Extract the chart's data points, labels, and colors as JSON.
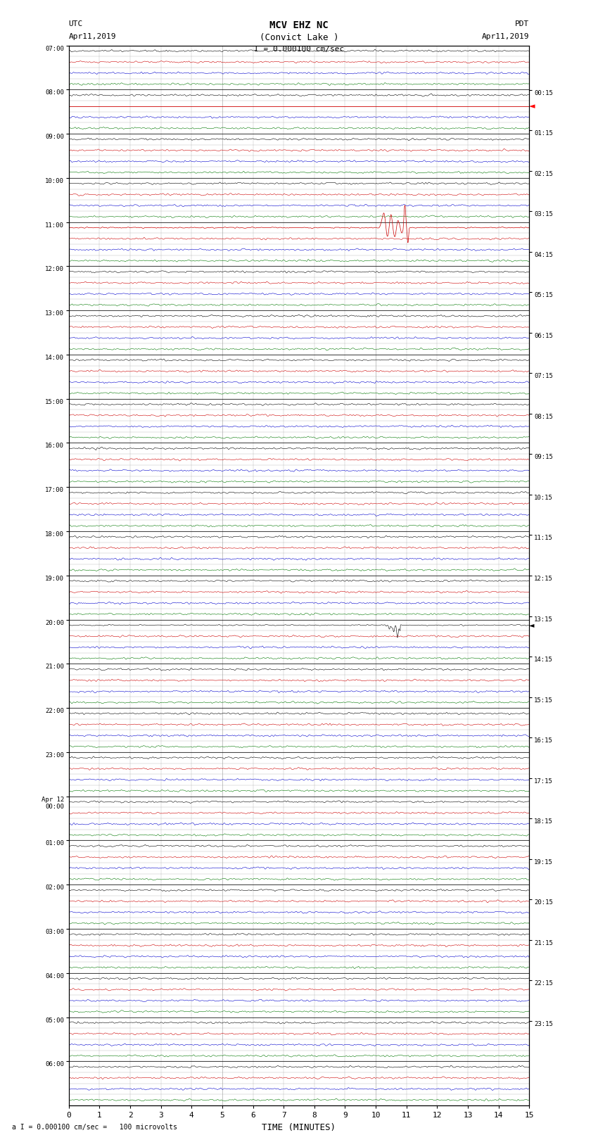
{
  "title_line1": "MCV EHZ NC",
  "title_line2": "(Convict Lake )",
  "title_scale": "I = 0.000100 cm/sec",
  "left_header_line1": "UTC",
  "left_header_line2": "Apr11,2019",
  "right_header_line1": "PDT",
  "right_header_line2": "Apr11,2019",
  "bottom_label": "TIME (MINUTES)",
  "bottom_note": "a I = 0.000100 cm/sec =   100 microvolts",
  "xlim": [
    0,
    15
  ],
  "xticks": [
    0,
    1,
    2,
    3,
    4,
    5,
    6,
    7,
    8,
    9,
    10,
    11,
    12,
    13,
    14,
    15
  ],
  "num_rows": 24,
  "left_labels": [
    "07:00",
    "08:00",
    "09:00",
    "10:00",
    "11:00",
    "12:00",
    "13:00",
    "14:00",
    "15:00",
    "16:00",
    "17:00",
    "18:00",
    "19:00",
    "20:00",
    "21:00",
    "22:00",
    "23:00",
    "Apr 12\n00:00",
    "01:00",
    "02:00",
    "03:00",
    "04:00",
    "05:00",
    "06:00"
  ],
  "right_labels": [
    "00:15",
    "01:15",
    "02:15",
    "03:15",
    "04:15",
    "05:15",
    "06:15",
    "07:15",
    "08:15",
    "09:15",
    "10:15",
    "11:15",
    "12:15",
    "13:15",
    "14:15",
    "15:15",
    "16:15",
    "17:15",
    "18:15",
    "19:15",
    "20:15",
    "21:15",
    "22:15",
    "23:15"
  ],
  "sub_colors": [
    "#000000",
    "#cc0000",
    "#0000cc",
    "#007700"
  ],
  "background_color": "#ffffff",
  "grid_major_color": "#000000",
  "grid_minor_color": "#999999",
  "seed": 42,
  "red_spike_row": 4,
  "red_spike_sub": 0,
  "black_spike_row": 13,
  "black_spike_sub": 0,
  "clipped_row": 1,
  "clipped_sub": 1
}
